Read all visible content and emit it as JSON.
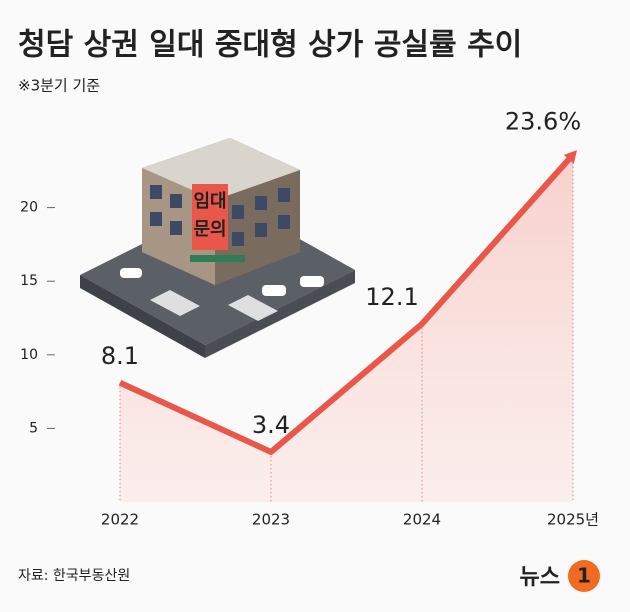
{
  "chart_data": {
    "type": "line",
    "title": "청담 상권 일대 중대형 상가 공실률 추이",
    "subtitle": "※3분기 기준",
    "categories": [
      "2022",
      "2023",
      "2024",
      "2025년"
    ],
    "values": [
      8.1,
      3.4,
      12.1,
      23.6
    ],
    "value_labels": [
      "8.1",
      "3.4",
      "12.1",
      "23.6%"
    ],
    "color": "#e8574a",
    "ylim": [
      0,
      25
    ],
    "yticks": [
      5,
      10,
      15,
      20
    ],
    "source": "자료: 한국부동산원",
    "logo": {
      "text": "뉴스",
      "mark": "1"
    }
  }
}
